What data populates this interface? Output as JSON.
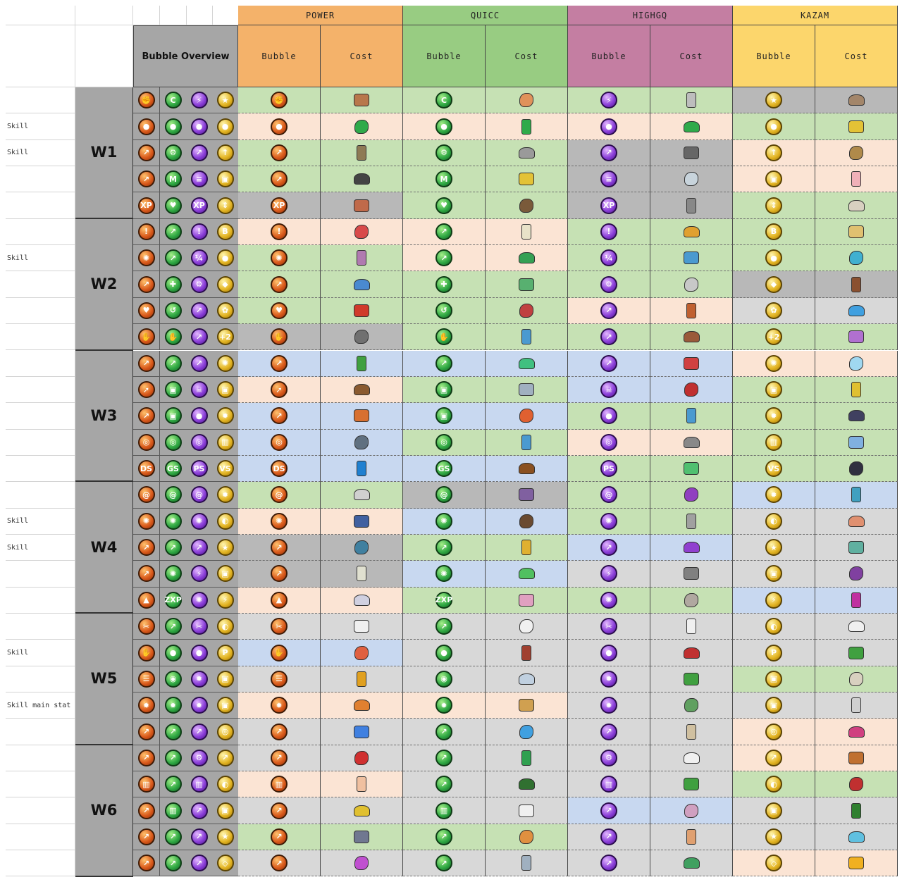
{
  "header": {
    "groups": [
      "POWER",
      "QUICC",
      "HIGHGQ",
      "KAZAM"
    ],
    "subheaders": [
      "Bubble",
      "Cost"
    ],
    "overview_title": "Bubble Overview"
  },
  "row_tags": [
    "",
    "Skill",
    "Skill",
    "",
    "",
    "",
    "Skill",
    "",
    "",
    "",
    "",
    "",
    "",
    "",
    "",
    "",
    "Skill",
    "Skill",
    "",
    "",
    "",
    "Skill",
    "",
    "Skill main stat",
    "",
    "",
    "",
    "",
    "",
    ""
  ],
  "worlds": [
    "W1",
    "W2",
    "W3",
    "W4",
    "W5",
    "W6"
  ],
  "bubble_glyphs": [
    [
      "✊",
      "C",
      "⚡",
      "★"
    ],
    [
      "●",
      "●",
      "●",
      "●"
    ],
    [
      "↗",
      "⚙",
      "↗",
      "↑"
    ],
    [
      "↗",
      "M",
      "≡",
      "▣"
    ],
    [
      "XP",
      "♥",
      "XP",
      "⇕"
    ],
    [
      "!",
      "↗",
      "!",
      "B"
    ],
    [
      "✺",
      "↗",
      "¼",
      "●"
    ],
    [
      "↗",
      "✚",
      "⚙",
      "◆"
    ],
    [
      "♥",
      "↺",
      "↗",
      "✿"
    ],
    [
      "✋",
      "✋",
      "↗",
      "+2"
    ],
    [
      "↗",
      "↗",
      "↗",
      "✺"
    ],
    [
      "➚",
      "▣",
      "☠",
      "▣"
    ],
    [
      "↗",
      "▣",
      "●",
      "✹"
    ],
    [
      "◎",
      "◎",
      "◎",
      "▥"
    ],
    [
      "DS",
      "GS",
      "PS",
      "VS"
    ],
    [
      "@",
      "@",
      "@",
      "✹"
    ],
    [
      "✺",
      "✺",
      "✺",
      "◐"
    ],
    [
      "↗",
      "↗",
      "↗",
      "★"
    ],
    [
      "↗",
      "✺",
      "⚡",
      "▣"
    ],
    [
      "▲",
      "ZXP",
      "✺",
      "⚡"
    ],
    [
      "✂",
      "↗",
      "✂",
      "◐"
    ],
    [
      "✋",
      "●",
      "●",
      "P"
    ],
    [
      "☰",
      "◉",
      "✹",
      "▣"
    ],
    [
      "✹",
      "✹",
      "✹",
      "▣"
    ],
    [
      "↗",
      "↗",
      "↗",
      "◎"
    ],
    [
      "↗",
      "↗",
      "⚙",
      "↗"
    ],
    [
      "▥",
      "↗",
      "▥",
      "◐"
    ],
    [
      "↗",
      "▥",
      "↗",
      "▣"
    ],
    [
      "↗",
      "↗",
      "↗",
      "★"
    ],
    [
      "↗",
      "↗",
      "↗",
      "◇"
    ]
  ],
  "colors": {
    "power_header": "#f4b26a",
    "quicc_header": "#98cc82",
    "highgq_header": "#c47ea2",
    "kazam_header": "#fcd66c",
    "green": "#c6e1b4",
    "peach": "#fbe4d4",
    "gray": "#b8b8b8",
    "lightgray": "#d8d8d8",
    "blue": "#c8d8f0",
    "overview_bg": "#a6a6a6"
  },
  "row_bg": [
    [
      "green",
      "green",
      "green",
      "gray"
    ],
    [
      "peach",
      "peach",
      "peach",
      "green"
    ],
    [
      "green",
      "green",
      "gray",
      "peach"
    ],
    [
      "green",
      "green",
      "gray",
      "peach"
    ],
    [
      "gray",
      "green",
      "gray",
      "green"
    ],
    [
      "peach",
      "peach",
      "green",
      "green"
    ],
    [
      "green",
      "peach",
      "green",
      "green"
    ],
    [
      "green",
      "green",
      "green",
      "gray"
    ],
    [
      "green",
      "green",
      "peach",
      "lightgray"
    ],
    [
      "gray",
      "green",
      "green",
      "green"
    ],
    [
      "blue",
      "blue",
      "blue",
      "peach"
    ],
    [
      "peach",
      "green",
      "blue",
      "green"
    ],
    [
      "blue",
      "blue",
      "green",
      "green"
    ],
    [
      "blue",
      "green",
      "peach",
      "green"
    ],
    [
      "blue",
      "blue",
      "green",
      "green"
    ],
    [
      "green",
      "gray",
      "green",
      "blue"
    ],
    [
      "peach",
      "blue",
      "green",
      "lightgray"
    ],
    [
      "gray",
      "green",
      "blue",
      "lightgray"
    ],
    [
      "gray",
      "blue",
      "lightgray",
      "lightgray"
    ],
    [
      "peach",
      "green",
      "green",
      "blue"
    ],
    [
      "lightgray",
      "lightgray",
      "lightgray",
      "lightgray"
    ],
    [
      "blue",
      "lightgray",
      "lightgray",
      "lightgray"
    ],
    [
      "lightgray",
      "lightgray",
      "lightgray",
      "green"
    ],
    [
      "peach",
      "peach",
      "lightgray",
      "lightgray"
    ],
    [
      "lightgray",
      "lightgray",
      "lightgray",
      "peach"
    ],
    [
      "lightgray",
      "lightgray",
      "lightgray",
      "peach"
    ],
    [
      "peach",
      "lightgray",
      "lightgray",
      "green"
    ],
    [
      "lightgray",
      "lightgray",
      "blue",
      "lightgray"
    ],
    [
      "green",
      "green",
      "lightgray",
      "lightgray"
    ],
    [
      "lightgray",
      "lightgray",
      "lightgray",
      "peach"
    ]
  ],
  "cost_items": [
    [
      "copper-log-icon",
      "pebble-icon",
      "oak-logs-icon",
      "fly-sticker-icon"
    ],
    [
      "green-slime-icon",
      "green-slime-icon",
      "green-slime-icon",
      "key-icon"
    ],
    [
      "bark-icon",
      "rock-icon",
      "bent-nail-icon",
      "hedgehog-icon"
    ],
    [
      "dumbbell-icon",
      "key-icon",
      "bar-icon",
      "cake-icon"
    ],
    [
      "plank-icon",
      "twig-icon",
      "chain-icon",
      "logs-icon"
    ],
    [
      "red-plank-icon",
      "shell-icon",
      "nugget-icon",
      "bone-icon"
    ],
    [
      "mushroom-icon",
      "slime-icon",
      "flower-icon",
      "jellyfish-icon"
    ],
    [
      "pearl-icon",
      "flower-icon",
      "logs-icon",
      "scroll-icon"
    ],
    [
      "cherry-icon",
      "jar-icon",
      "steak-icon",
      "water-drops-icon"
    ],
    [
      "snail-icon",
      "bird-icon",
      "bark-icon",
      "gem-icon"
    ],
    [
      "frog-icon",
      "ghost-icon",
      "red-cone-icon",
      "ice-cube-icon"
    ],
    [
      "comb-icon",
      "shell-icon",
      "butterfly-icon",
      "gold-coin-icon"
    ],
    [
      "mound-icon",
      "worm-icon",
      "bird-icon",
      "dark-rock-icon"
    ],
    [
      "pipe-icon",
      "wand-icon",
      "pickaxe-icon",
      "pill-icon"
    ],
    [
      "eye-orb-icon",
      "bear-icon",
      "green-ghost-icon",
      "penguin-icon"
    ],
    [
      "fish-bone-icon",
      "wrench-icon",
      "purple-gem-icon",
      "blue-pyramid-icon"
    ],
    [
      "magnet-icon",
      "brown-rock-icon",
      "silver-ore-icon",
      "bottle-icon"
    ],
    [
      "cable-icon",
      "bee-icon",
      "purple-splat-icon",
      "blue-bottle-icon"
    ],
    [
      "bone-tube-icon",
      "green-mound-icon",
      "anvil-icon",
      "potion-icon"
    ],
    [
      "web-icon",
      "pink-petal-icon",
      "stone-stack-icon",
      "pink-slime-icon"
    ],
    [
      "square-chain-icon",
      "square-chain-icon",
      "square-chain-icon",
      "square-chain-icon"
    ],
    [
      "jelly-icon",
      "logs-icon",
      "red-bird-icon",
      "green-leaf-icon"
    ],
    [
      "lightning-icon",
      "snowman-icon",
      "green-stack-icon",
      "white-logs-icon"
    ],
    [
      "juice-icon",
      "bread-icon",
      "green-helmet-icon",
      "atom-icon"
    ],
    [
      "blue-jelly-icon",
      "diamond-icon",
      "scroll-icon",
      "pink-egg-icon"
    ],
    [
      "strawberry-icon",
      "green-coin-icon",
      "swirl-icon",
      "walnut-icon"
    ],
    [
      "peach-icon",
      "leaf-icon",
      "grass-icon",
      "ladybug-icon"
    ],
    [
      "moon-icon",
      "daisy-icon",
      "pink-puff-icon",
      "broccoli-icon"
    ],
    [
      "stones-icon",
      "candy-icon",
      "bread-roll-icon",
      "star-icon"
    ],
    [
      "pink-star-icon",
      "mushroom-icon",
      "green-coin-icon",
      "gold-blob-icon"
    ]
  ],
  "cost_colors": [
    [
      "#b8774b",
      "#e0925a",
      "#bdbdbd",
      "#a3866a"
    ],
    [
      "#2faa4a",
      "#2faa4a",
      "#2faa4a",
      "#e3c236"
    ],
    [
      "#8e7a55",
      "#9a9a9a",
      "#666666",
      "#b08a4a"
    ],
    [
      "#444444",
      "#e3c236",
      "#c8d4dc",
      "#f0b0b8"
    ],
    [
      "#c06a4a",
      "#7a5a3a",
      "#888888",
      "#d8d0c0"
    ],
    [
      "#d84a4a",
      "#e8e2c8",
      "#e0a030",
      "#e0c070"
    ],
    [
      "#b07ab0",
      "#34a054",
      "#4a9ad0",
      "#40b0d0"
    ],
    [
      "#4a8ad0",
      "#58b070",
      "#c8c8c8",
      "#8a5030"
    ],
    [
      "#d03a2a",
      "#c04040",
      "#c06030",
      "#40a0e0"
    ],
    [
      "#707070",
      "#4a9ad0",
      "#9a5a3a",
      "#b070d0"
    ],
    [
      "#40a040",
      "#40c080",
      "#d04040",
      "#a0d8f0"
    ],
    [
      "#8a5a30",
      "#a0b0c0",
      "#c03030",
      "#e0c030"
    ],
    [
      "#d87030",
      "#e06030",
      "#4a9ad0",
      "#404060"
    ],
    [
      "#607080",
      "#4a9ad0",
      "#888888",
      "#80b0e0"
    ],
    [
      "#2080d0",
      "#8a5020",
      "#50c070",
      "#303040"
    ],
    [
      "#d0d0d0",
      "#8060a0",
      "#9040c0",
      "#40a0c0"
    ],
    [
      "#4060a0",
      "#6a4a30",
      "#a0a0a0",
      "#e09070"
    ],
    [
      "#4080a0",
      "#e0b030",
      "#9040d0",
      "#60b0a0"
    ],
    [
      "#e0e0d0",
      "#50c060",
      "#808080",
      "#8040a0"
    ],
    [
      "#d0d0e0",
      "#e0a0c0",
      "#b0a8a0",
      "#c030a0"
    ],
    [
      "#f0f0f0",
      "#f0f0f0",
      "#f0f0f0",
      "#f0f0f0"
    ],
    [
      "#e06040",
      "#a04030",
      "#c03030",
      "#40a040"
    ],
    [
      "#e0a020",
      "#c0d0e0",
      "#40a040",
      "#d8d0c0"
    ],
    [
      "#e08030",
      "#d0a050",
      "#60a060",
      "#d0d0d0"
    ],
    [
      "#4080e0",
      "#40a0e0",
      "#d0c0a0",
      "#d04080"
    ],
    [
      "#d03030",
      "#30a050",
      "#f0f0f0",
      "#c07030"
    ],
    [
      "#f0c0a0",
      "#307030",
      "#40a040",
      "#c03030"
    ],
    [
      "#e0c030",
      "#f0f0f0",
      "#d0a0c0",
      "#308030"
    ],
    [
      "#707890",
      "#e09040",
      "#e0a070",
      "#60c0e0"
    ],
    [
      "#c050d0",
      "#a0b0c0",
      "#40a060",
      "#f0b020"
    ]
  ]
}
